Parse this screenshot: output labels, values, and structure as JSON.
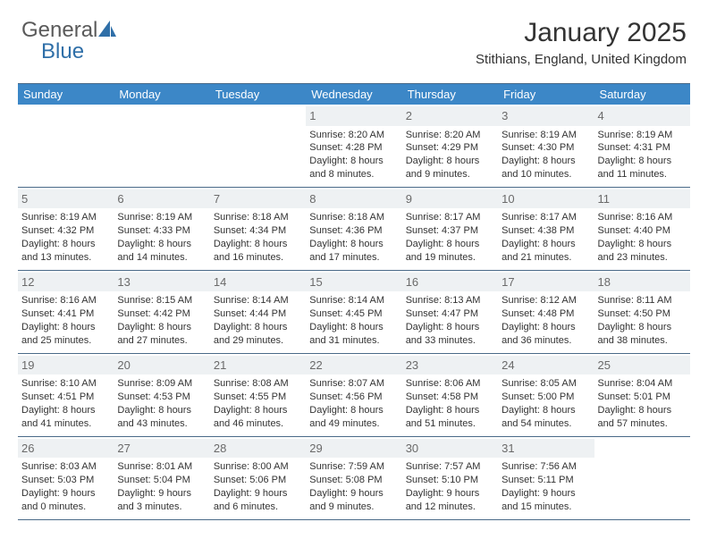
{
  "brand": {
    "part1": "General",
    "part2": "Blue"
  },
  "title": "January 2025",
  "location": "Stithians, England, United Kingdom",
  "colors": {
    "header_bg": "#3c87c7",
    "header_text": "#ffffff",
    "rule": "#4a6a88",
    "daynum_bg": "#eef1f3",
    "daynum_text": "#6a6a6a",
    "body_text": "#333333",
    "logo_gray": "#5a5a5a",
    "logo_blue": "#2f6fa8"
  },
  "day_headers": [
    "Sunday",
    "Monday",
    "Tuesday",
    "Wednesday",
    "Thursday",
    "Friday",
    "Saturday"
  ],
  "weeks": [
    [
      {
        "num": "",
        "sunrise": "",
        "sunset": "",
        "daylight": ""
      },
      {
        "num": "",
        "sunrise": "",
        "sunset": "",
        "daylight": ""
      },
      {
        "num": "",
        "sunrise": "",
        "sunset": "",
        "daylight": ""
      },
      {
        "num": "1",
        "sunrise": "Sunrise: 8:20 AM",
        "sunset": "Sunset: 4:28 PM",
        "daylight": "Daylight: 8 hours and 8 minutes."
      },
      {
        "num": "2",
        "sunrise": "Sunrise: 8:20 AM",
        "sunset": "Sunset: 4:29 PM",
        "daylight": "Daylight: 8 hours and 9 minutes."
      },
      {
        "num": "3",
        "sunrise": "Sunrise: 8:19 AM",
        "sunset": "Sunset: 4:30 PM",
        "daylight": "Daylight: 8 hours and 10 minutes."
      },
      {
        "num": "4",
        "sunrise": "Sunrise: 8:19 AM",
        "sunset": "Sunset: 4:31 PM",
        "daylight": "Daylight: 8 hours and 11 minutes."
      }
    ],
    [
      {
        "num": "5",
        "sunrise": "Sunrise: 8:19 AM",
        "sunset": "Sunset: 4:32 PM",
        "daylight": "Daylight: 8 hours and 13 minutes."
      },
      {
        "num": "6",
        "sunrise": "Sunrise: 8:19 AM",
        "sunset": "Sunset: 4:33 PM",
        "daylight": "Daylight: 8 hours and 14 minutes."
      },
      {
        "num": "7",
        "sunrise": "Sunrise: 8:18 AM",
        "sunset": "Sunset: 4:34 PM",
        "daylight": "Daylight: 8 hours and 16 minutes."
      },
      {
        "num": "8",
        "sunrise": "Sunrise: 8:18 AM",
        "sunset": "Sunset: 4:36 PM",
        "daylight": "Daylight: 8 hours and 17 minutes."
      },
      {
        "num": "9",
        "sunrise": "Sunrise: 8:17 AM",
        "sunset": "Sunset: 4:37 PM",
        "daylight": "Daylight: 8 hours and 19 minutes."
      },
      {
        "num": "10",
        "sunrise": "Sunrise: 8:17 AM",
        "sunset": "Sunset: 4:38 PM",
        "daylight": "Daylight: 8 hours and 21 minutes."
      },
      {
        "num": "11",
        "sunrise": "Sunrise: 8:16 AM",
        "sunset": "Sunset: 4:40 PM",
        "daylight": "Daylight: 8 hours and 23 minutes."
      }
    ],
    [
      {
        "num": "12",
        "sunrise": "Sunrise: 8:16 AM",
        "sunset": "Sunset: 4:41 PM",
        "daylight": "Daylight: 8 hours and 25 minutes."
      },
      {
        "num": "13",
        "sunrise": "Sunrise: 8:15 AM",
        "sunset": "Sunset: 4:42 PM",
        "daylight": "Daylight: 8 hours and 27 minutes."
      },
      {
        "num": "14",
        "sunrise": "Sunrise: 8:14 AM",
        "sunset": "Sunset: 4:44 PM",
        "daylight": "Daylight: 8 hours and 29 minutes."
      },
      {
        "num": "15",
        "sunrise": "Sunrise: 8:14 AM",
        "sunset": "Sunset: 4:45 PM",
        "daylight": "Daylight: 8 hours and 31 minutes."
      },
      {
        "num": "16",
        "sunrise": "Sunrise: 8:13 AM",
        "sunset": "Sunset: 4:47 PM",
        "daylight": "Daylight: 8 hours and 33 minutes."
      },
      {
        "num": "17",
        "sunrise": "Sunrise: 8:12 AM",
        "sunset": "Sunset: 4:48 PM",
        "daylight": "Daylight: 8 hours and 36 minutes."
      },
      {
        "num": "18",
        "sunrise": "Sunrise: 8:11 AM",
        "sunset": "Sunset: 4:50 PM",
        "daylight": "Daylight: 8 hours and 38 minutes."
      }
    ],
    [
      {
        "num": "19",
        "sunrise": "Sunrise: 8:10 AM",
        "sunset": "Sunset: 4:51 PM",
        "daylight": "Daylight: 8 hours and 41 minutes."
      },
      {
        "num": "20",
        "sunrise": "Sunrise: 8:09 AM",
        "sunset": "Sunset: 4:53 PM",
        "daylight": "Daylight: 8 hours and 43 minutes."
      },
      {
        "num": "21",
        "sunrise": "Sunrise: 8:08 AM",
        "sunset": "Sunset: 4:55 PM",
        "daylight": "Daylight: 8 hours and 46 minutes."
      },
      {
        "num": "22",
        "sunrise": "Sunrise: 8:07 AM",
        "sunset": "Sunset: 4:56 PM",
        "daylight": "Daylight: 8 hours and 49 minutes."
      },
      {
        "num": "23",
        "sunrise": "Sunrise: 8:06 AM",
        "sunset": "Sunset: 4:58 PM",
        "daylight": "Daylight: 8 hours and 51 minutes."
      },
      {
        "num": "24",
        "sunrise": "Sunrise: 8:05 AM",
        "sunset": "Sunset: 5:00 PM",
        "daylight": "Daylight: 8 hours and 54 minutes."
      },
      {
        "num": "25",
        "sunrise": "Sunrise: 8:04 AM",
        "sunset": "Sunset: 5:01 PM",
        "daylight": "Daylight: 8 hours and 57 minutes."
      }
    ],
    [
      {
        "num": "26",
        "sunrise": "Sunrise: 8:03 AM",
        "sunset": "Sunset: 5:03 PM",
        "daylight": "Daylight: 9 hours and 0 minutes."
      },
      {
        "num": "27",
        "sunrise": "Sunrise: 8:01 AM",
        "sunset": "Sunset: 5:04 PM",
        "daylight": "Daylight: 9 hours and 3 minutes."
      },
      {
        "num": "28",
        "sunrise": "Sunrise: 8:00 AM",
        "sunset": "Sunset: 5:06 PM",
        "daylight": "Daylight: 9 hours and 6 minutes."
      },
      {
        "num": "29",
        "sunrise": "Sunrise: 7:59 AM",
        "sunset": "Sunset: 5:08 PM",
        "daylight": "Daylight: 9 hours and 9 minutes."
      },
      {
        "num": "30",
        "sunrise": "Sunrise: 7:57 AM",
        "sunset": "Sunset: 5:10 PM",
        "daylight": "Daylight: 9 hours and 12 minutes."
      },
      {
        "num": "31",
        "sunrise": "Sunrise: 7:56 AM",
        "sunset": "Sunset: 5:11 PM",
        "daylight": "Daylight: 9 hours and 15 minutes."
      },
      {
        "num": "",
        "sunrise": "",
        "sunset": "",
        "daylight": ""
      }
    ]
  ]
}
